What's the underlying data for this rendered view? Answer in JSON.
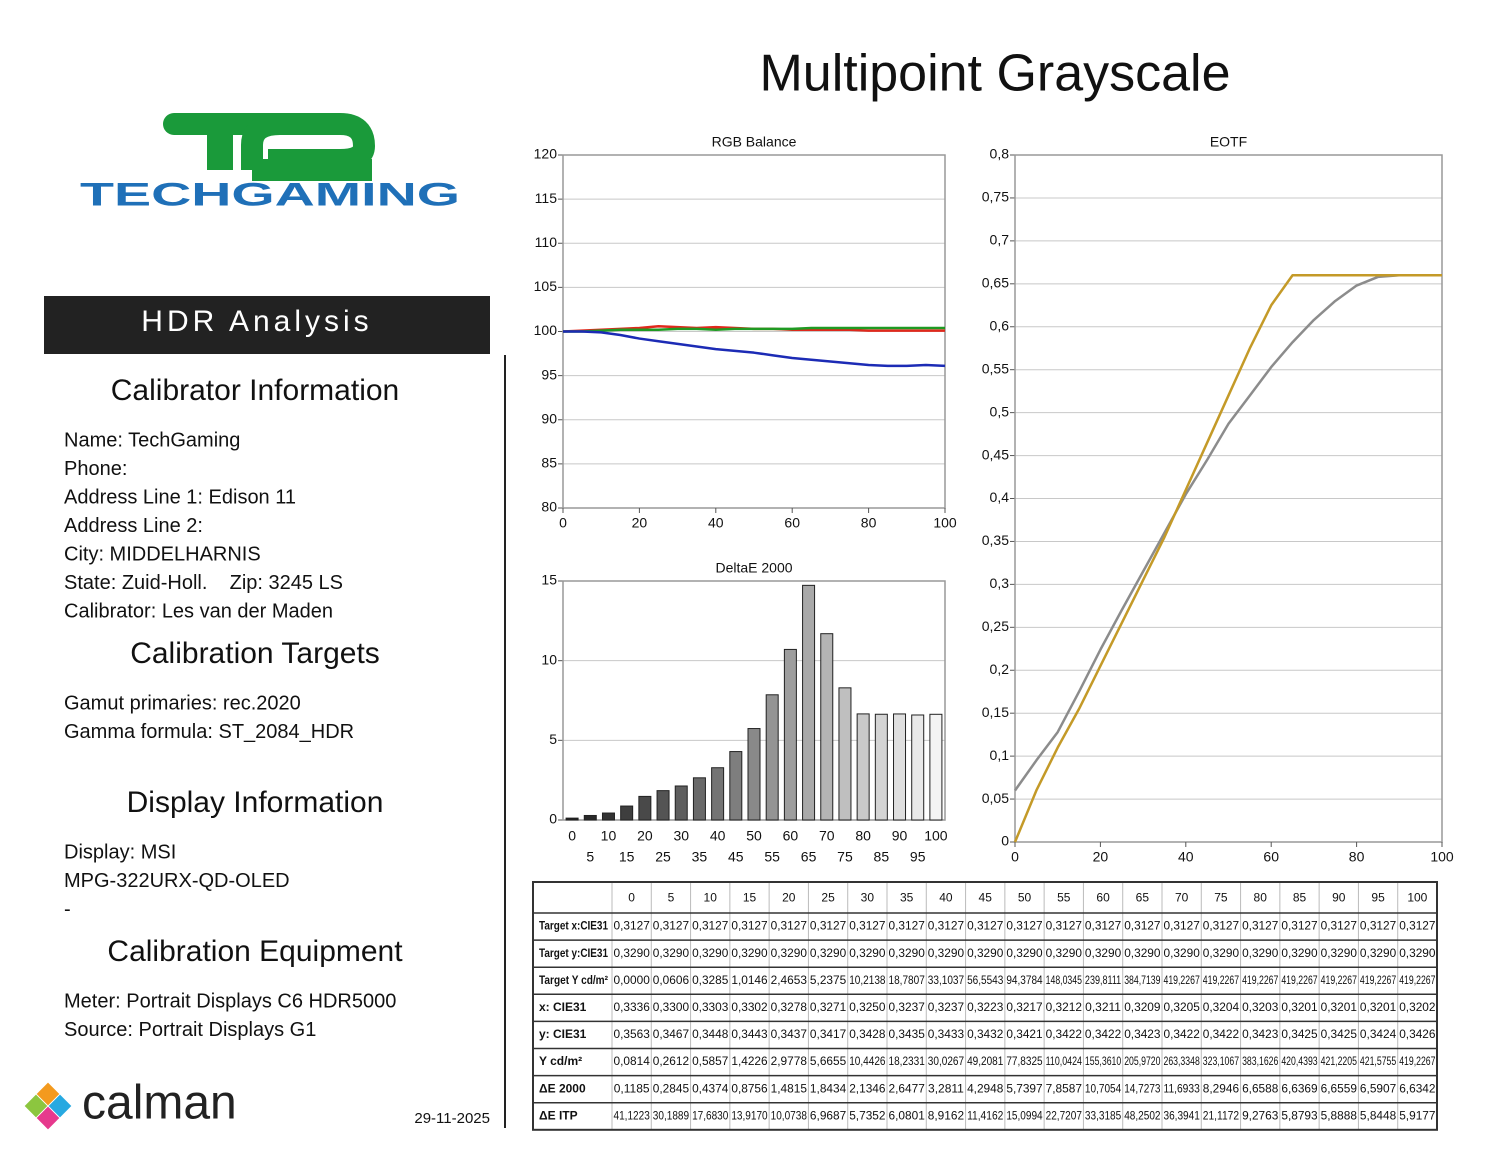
{
  "title": "Multipoint Grayscale",
  "logo": {
    "brand": "TECHGAMING"
  },
  "sidebar": {
    "banner": "HDR Analysis",
    "sections": [
      {
        "heading": "Calibrator Information",
        "lines": [
          "Name: TechGaming",
          "Phone:",
          "Address Line 1: Edison 11",
          "Address Line 2:",
          "City: MIDDELHARNIS",
          "State: Zuid-Holl.    Zip: 3245 LS",
          "Calibrator: Les van der Maden"
        ]
      },
      {
        "heading": "Calibration Targets",
        "lines": [
          "Gamut primaries: rec.2020",
          "Gamma formula: ST_2084_HDR"
        ]
      },
      {
        "heading": "Display Information",
        "lines": [
          "Display: MSI",
          "MPG-322URX-QD-OLED",
          "-"
        ]
      },
      {
        "heading": "Calibration Equipment",
        "lines": [
          "Meter: Portrait Displays C6 HDR5000",
          "Source: Portrait Displays G1"
        ]
      }
    ],
    "footer": {
      "logo": "calman",
      "date": "29-11-2025"
    }
  },
  "chart_data": [
    {
      "type": "line",
      "title": "RGB Balance",
      "x": [
        0,
        5,
        10,
        15,
        20,
        25,
        30,
        35,
        40,
        45,
        50,
        55,
        60,
        65,
        70,
        75,
        80,
        85,
        90,
        95,
        100
      ],
      "xlim": [
        0,
        100
      ],
      "xticks": [
        0,
        20,
        40,
        60,
        80,
        100
      ],
      "ylim": [
        80,
        120
      ],
      "yticks": [
        80,
        85,
        90,
        95,
        100,
        105,
        110,
        115,
        120
      ],
      "grid": true,
      "series": [
        {
          "color": "#e0281c",
          "values": [
            100,
            100.1,
            100.2,
            100.3,
            100.4,
            100.6,
            100.5,
            100.4,
            100.5,
            100.4,
            100.3,
            100.3,
            100.2,
            100.2,
            100.2,
            100.2,
            100.1,
            100.1,
            100.1,
            100.1,
            100.1
          ]
        },
        {
          "color": "#1f9a22",
          "values": [
            100,
            100,
            100.1,
            100.2,
            100.2,
            100.2,
            100.3,
            100.3,
            100.2,
            100.3,
            100.3,
            100.3,
            100.3,
            100.4,
            100.4,
            100.4,
            100.4,
            100.4,
            100.4,
            100.4,
            100.4
          ]
        },
        {
          "color": "#1c2bb5",
          "values": [
            100,
            100,
            99.9,
            99.6,
            99.2,
            98.9,
            98.6,
            98.3,
            98.0,
            97.8,
            97.6,
            97.3,
            97.0,
            96.8,
            96.6,
            96.4,
            96.2,
            96.1,
            96.1,
            96.2,
            96.1
          ]
        }
      ]
    },
    {
      "type": "bar",
      "title": "DeltaE 2000",
      "categories": [
        0,
        5,
        10,
        15,
        20,
        25,
        30,
        35,
        40,
        45,
        50,
        55,
        60,
        65,
        70,
        75,
        80,
        85,
        90,
        95,
        100
      ],
      "values": [
        0.1185,
        0.2845,
        0.4374,
        0.8756,
        1.4815,
        1.8434,
        2.1346,
        2.6477,
        3.2811,
        4.2948,
        5.7397,
        7.8587,
        10.7054,
        14.7273,
        11.6933,
        8.2946,
        6.6588,
        6.6369,
        6.6559,
        6.5907,
        6.6342
      ],
      "ylim": [
        0,
        15
      ],
      "yticks": [
        0,
        5,
        10,
        15
      ],
      "grid": true,
      "color_start": "#1e1e1e",
      "color_end": "#f4f4f4"
    },
    {
      "type": "line",
      "title": "EOTF",
      "x": [
        0,
        5,
        10,
        15,
        20,
        25,
        30,
        35,
        40,
        45,
        50,
        55,
        60,
        65,
        70,
        75,
        80,
        85,
        90,
        95,
        100
      ],
      "xlim": [
        0,
        100
      ],
      "xticks": [
        0,
        20,
        40,
        60,
        80,
        100
      ],
      "ylim": [
        0,
        0.8
      ],
      "yticks": [
        0,
        {
          "value": 0.05,
          "label": "0,05"
        },
        {
          "value": 0.1,
          "label": "0,1"
        },
        {
          "value": 0.15,
          "label": "0,15"
        },
        {
          "value": 0.2,
          "label": "0,2"
        },
        {
          "value": 0.25,
          "label": "0,25"
        },
        {
          "value": 0.3,
          "label": "0,3"
        },
        {
          "value": 0.35,
          "label": "0,35"
        },
        {
          "value": 0.4,
          "label": "0,4"
        },
        {
          "value": 0.45,
          "label": "0,45"
        },
        {
          "value": 0.5,
          "label": "0,5"
        },
        {
          "value": 0.55,
          "label": "0,55"
        },
        {
          "value": 0.6,
          "label": "0,6"
        },
        {
          "value": 0.65,
          "label": "0,65"
        },
        {
          "value": 0.7,
          "label": "0,7"
        },
        {
          "value": 0.75,
          "label": "0,75"
        },
        {
          "value": 0.8,
          "label": "0,8"
        }
      ],
      "grid": true,
      "series": [
        {
          "color": "#8c8c8c",
          "values": [
            0.06,
            0.095,
            0.128,
            0.175,
            0.224,
            0.27,
            0.315,
            0.36,
            0.405,
            0.445,
            0.487,
            0.52,
            0.553,
            0.582,
            0.608,
            0.63,
            0.648,
            0.658,
            0.66,
            0.66,
            0.66
          ]
        },
        {
          "color": "#c49a28",
          "values": [
            0,
            0.06,
            0.11,
            0.155,
            0.205,
            0.255,
            0.305,
            0.355,
            0.41,
            0.465,
            0.52,
            0.575,
            0.625,
            0.66,
            0.66,
            0.66,
            0.66,
            0.66,
            0.66,
            0.66,
            0.66
          ]
        }
      ]
    }
  ],
  "table": {
    "columns": [
      0,
      5,
      10,
      15,
      20,
      25,
      30,
      35,
      40,
      45,
      50,
      55,
      60,
      65,
      70,
      75,
      80,
      85,
      90,
      95,
      100
    ],
    "rows": [
      {
        "label": "Target x:CIE31",
        "cells": [
          "0,3127",
          "0,3127",
          "0,3127",
          "0,3127",
          "0,3127",
          "0,3127",
          "0,3127",
          "0,3127",
          "0,3127",
          "0,3127",
          "0,3127",
          "0,3127",
          "0,3127",
          "0,3127",
          "0,3127",
          "0,3127",
          "0,3127",
          "0,3127",
          "0,3127",
          "0,3127",
          "0,3127"
        ]
      },
      {
        "label": "Target y:CIE31",
        "cells": [
          "0,3290",
          "0,3290",
          "0,3290",
          "0,3290",
          "0,3290",
          "0,3290",
          "0,3290",
          "0,3290",
          "0,3290",
          "0,3290",
          "0,3290",
          "0,3290",
          "0,3290",
          "0,3290",
          "0,3290",
          "0,3290",
          "0,3290",
          "0,3290",
          "0,3290",
          "0,3290",
          "0,3290"
        ]
      },
      {
        "label": "Target Y cd/m²",
        "cells": [
          "0,0000",
          "0,0606",
          "0,3285",
          "1,0146",
          "2,4653",
          "5,2375",
          "10,2138",
          "18,7807",
          "33,1037",
          "56,5543",
          "94,3784",
          "148,0345",
          "239,8111",
          "384,7139",
          "419,2267",
          "419,2267",
          "419,2267",
          "419,2267",
          "419,2267",
          "419,2267",
          "419,2267"
        ]
      },
      {
        "label": "x: CIE31",
        "cells": [
          "0,3336",
          "0,3300",
          "0,3303",
          "0,3302",
          "0,3278",
          "0,3271",
          "0,3250",
          "0,3237",
          "0,3237",
          "0,3223",
          "0,3217",
          "0,3212",
          "0,3211",
          "0,3209",
          "0,3205",
          "0,3204",
          "0,3203",
          "0,3201",
          "0,3201",
          "0,3201",
          "0,3202"
        ]
      },
      {
        "label": "y: CIE31",
        "cells": [
          "0,3563",
          "0,3467",
          "0,3448",
          "0,3443",
          "0,3437",
          "0,3417",
          "0,3428",
          "0,3435",
          "0,3433",
          "0,3432",
          "0,3421",
          "0,3422",
          "0,3422",
          "0,3423",
          "0,3422",
          "0,3422",
          "0,3423",
          "0,3425",
          "0,3425",
          "0,3424",
          "0,3426"
        ]
      },
      {
        "label": "Y cd/m²",
        "cells": [
          "0,0814",
          "0,2612",
          "0,5857",
          "1,4226",
          "2,9778",
          "5,6655",
          "10,4426",
          "18,2331",
          "30,0267",
          "49,2081",
          "77,8325",
          "110,0424",
          "155,3610",
          "205,9720",
          "263,3348",
          "323,1067",
          "383,1626",
          "420,4393",
          "421,2205",
          "421,5755",
          "419,2267"
        ]
      },
      {
        "label": "ΔE 2000",
        "cells": [
          "0,1185",
          "0,2845",
          "0,4374",
          "0,8756",
          "1,4815",
          "1,8434",
          "2,1346",
          "2,6477",
          "3,2811",
          "4,2948",
          "5,7397",
          "7,8587",
          "10,7054",
          "14,7273",
          "11,6933",
          "8,2946",
          "6,6588",
          "6,6369",
          "6,6559",
          "6,5907",
          "6,6342"
        ]
      },
      {
        "label": "ΔE ITP",
        "cells": [
          "41,1223",
          "30,1889",
          "17,6830",
          "13,9170",
          "10,0738",
          "6,9687",
          "5,7352",
          "6,0801",
          "8,9162",
          "11,4162",
          "15,0994",
          "22,7207",
          "33,3185",
          "48,2502",
          "36,3941",
          "21,1172",
          "9,2763",
          "5,8793",
          "5,8888",
          "5,8448",
          "5,9177"
        ]
      }
    ]
  }
}
